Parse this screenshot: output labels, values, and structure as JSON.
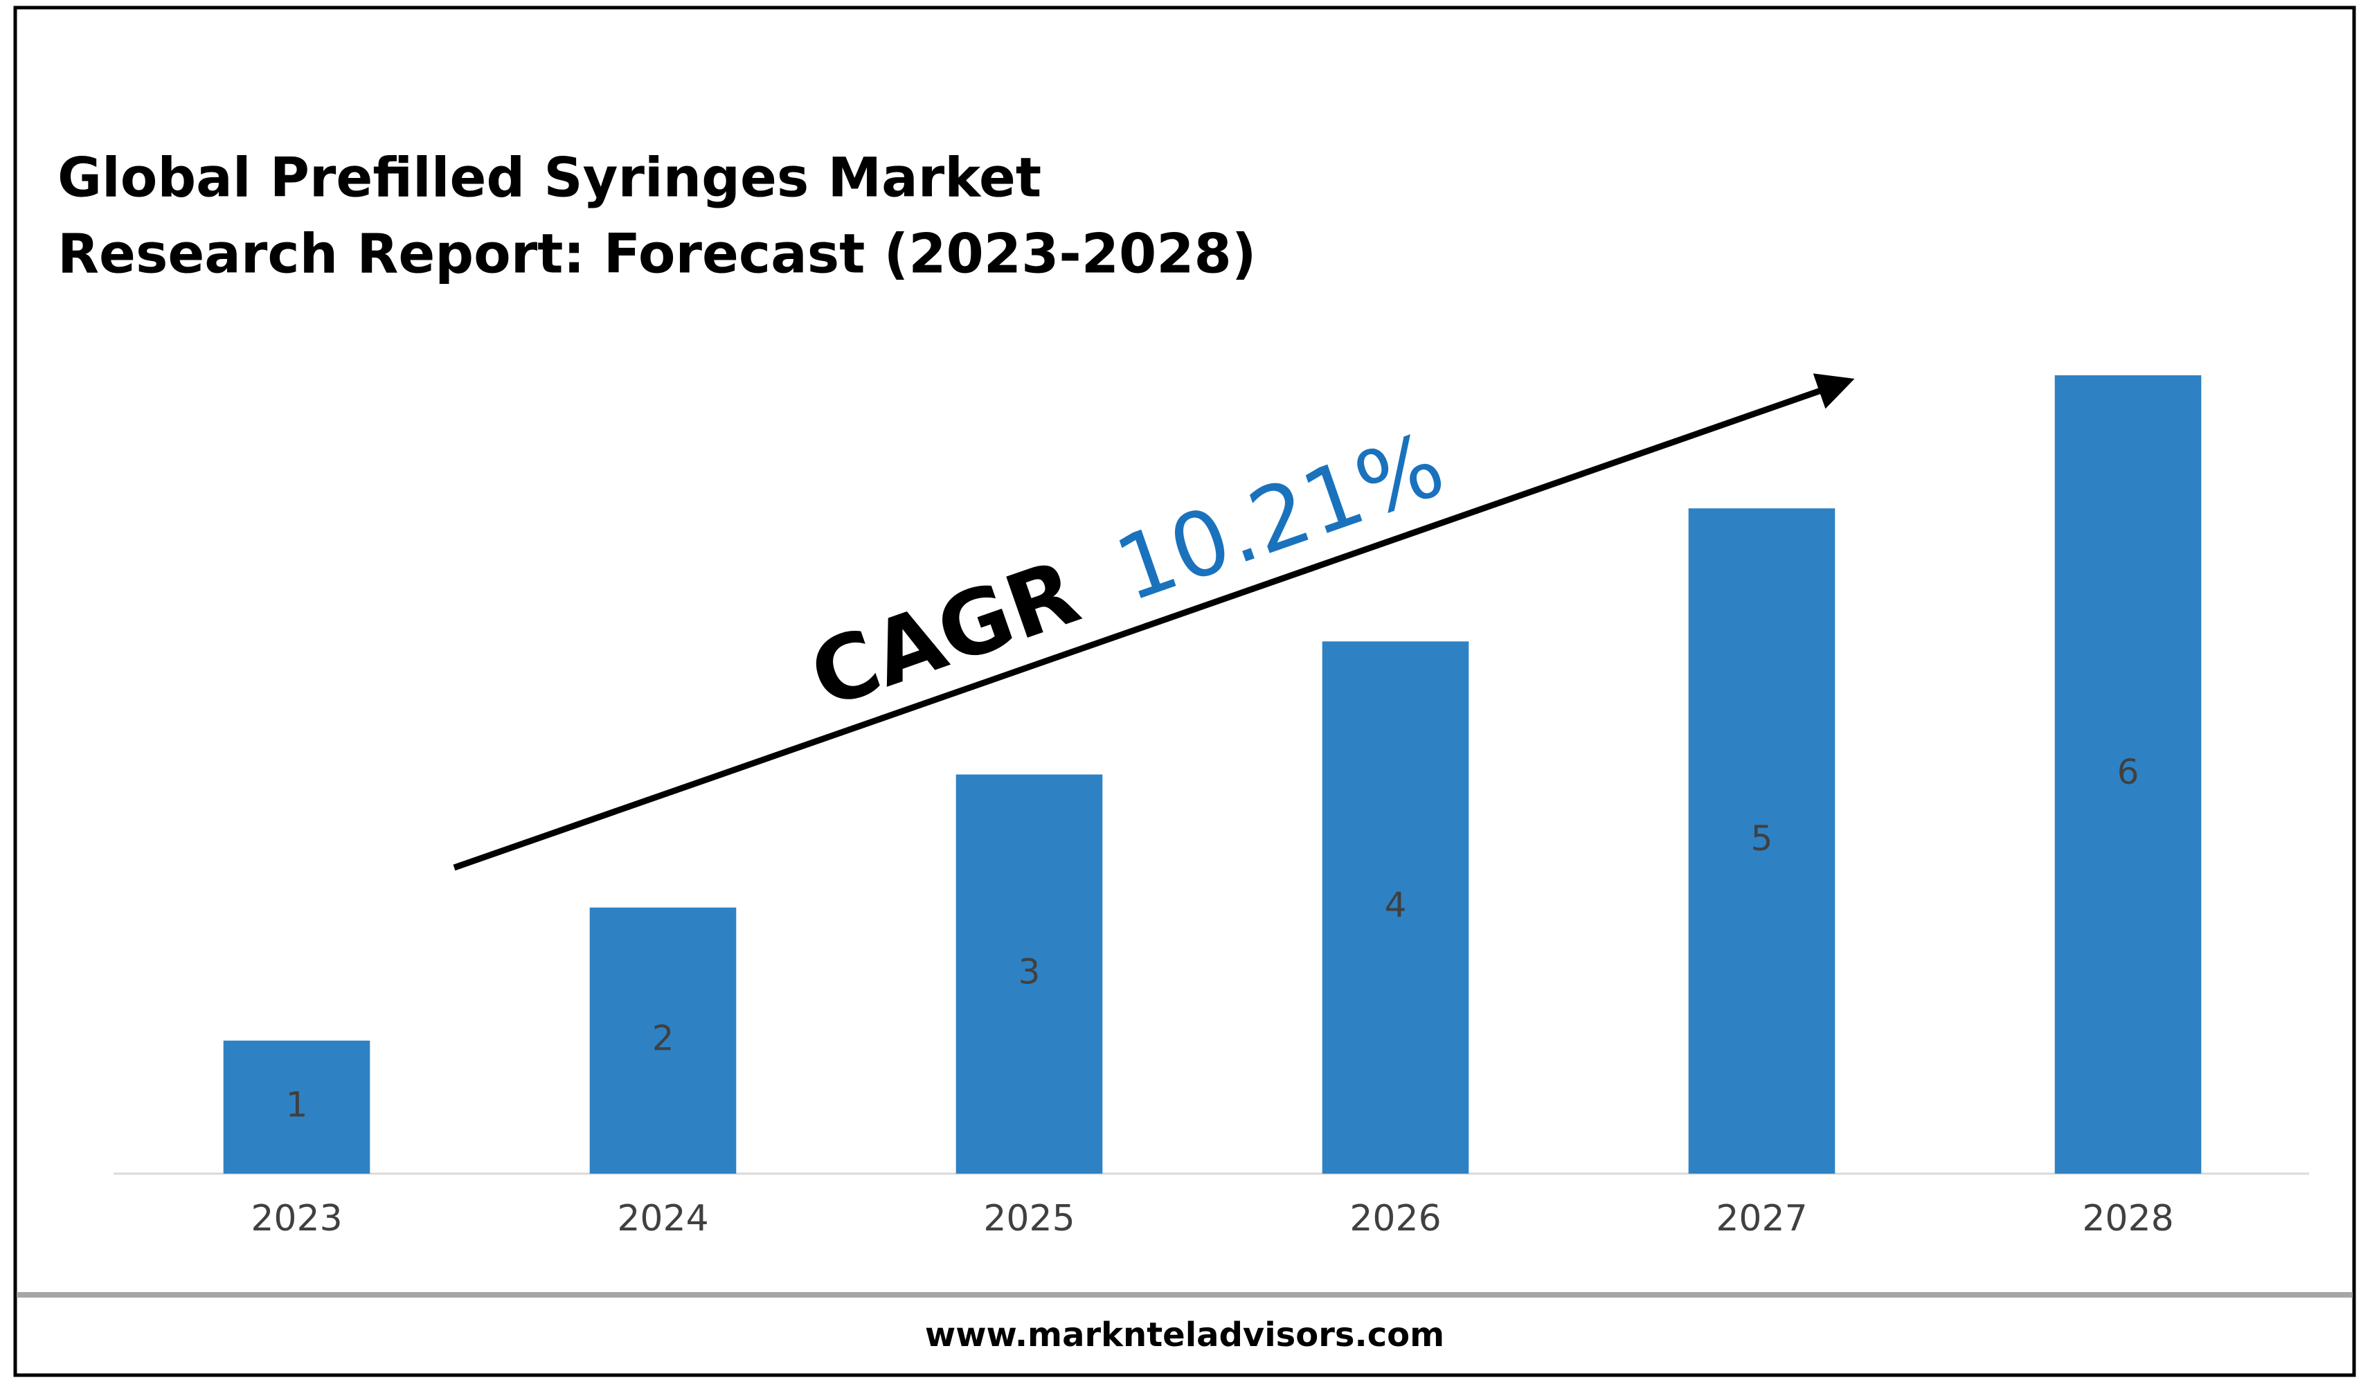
{
  "chart_data": {
    "type": "bar",
    "title": [
      "Global Prefilled Syringes Market",
      "Research Report: Forecast (2023-2028)"
    ],
    "categories": [
      "2023",
      "2024",
      "2025",
      "2026",
      "2027",
      "2028"
    ],
    "values": [
      1,
      2,
      3,
      4,
      5,
      6
    ],
    "color": "#2e82c4",
    "annotation": {
      "label": "CAGR",
      "value": "10.21%",
      "value_color": "#1a72bd"
    },
    "source": "www.marknteladvisors.com"
  }
}
